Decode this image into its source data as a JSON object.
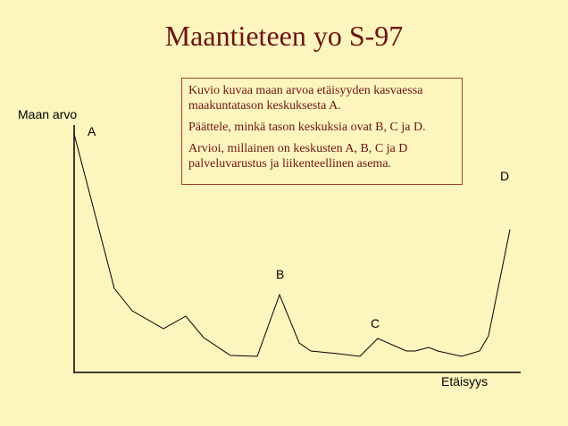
{
  "header": {
    "title": "Maantieteen yo S-97"
  },
  "task_box": {
    "paragraphs": [
      "Kuvio kuvaa maan arvoa etäisyyden kasvaessa maakuntatason keskuksesta A.",
      "Päättele, minkä tason keskuksia ovat B, C ja D.",
      "Arvioi, millainen on keskusten A, B, C ja D palveluvarustus ja liikenteellinen asema."
    ]
  },
  "diagram": {
    "y_axis_label": "Maan arvo",
    "x_axis_label": "Etäisyys",
    "point_labels": [
      "A",
      "B",
      "C",
      "D"
    ]
  }
}
